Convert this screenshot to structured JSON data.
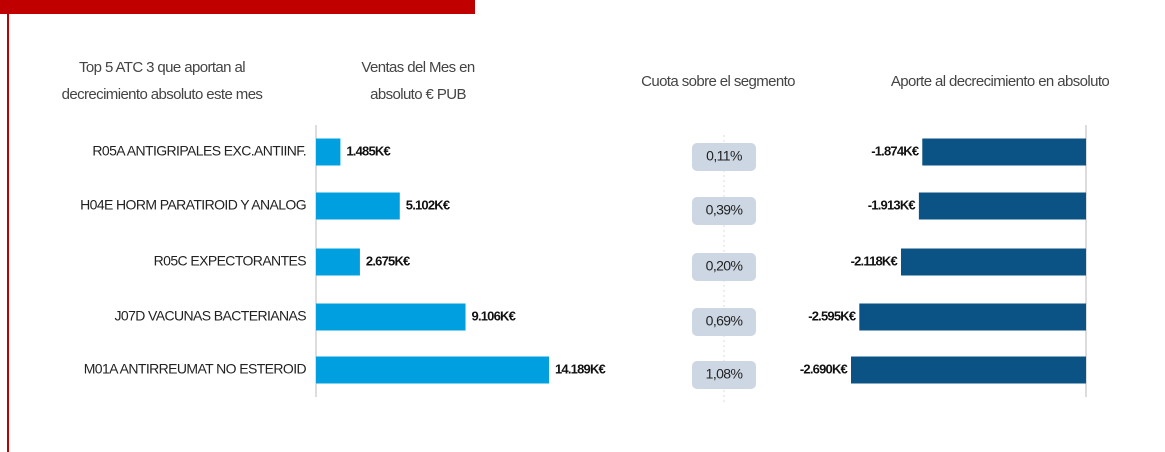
{
  "headers": [
    [
      "Top 5 ATC 3 que aportan al",
      "decrecimiento absoluto este mes"
    ],
    [
      "Ventas del Mes  en",
      "absoluto € PUB"
    ],
    [
      "Cuota sobre el segmento"
    ],
    [
      "Aporte al decrecimiento en absoluto"
    ]
  ],
  "chart_data": [
    {
      "type": "hbar",
      "categories": [
        "R05A ANTIGRIPALES EXC.ANTIINF.",
        "H04E HORM PARATIROID Y ANALOG",
        "R05C EXPECTORANTES",
        "J07D VACUNAS BACTERIANAS",
        "M01A ANTIRREUMAT NO ESTEROID"
      ],
      "values": [
        1485,
        5102,
        2675,
        9106,
        14189
      ],
      "value_labels": [
        "1.485K€",
        "5.102K€",
        "2.675K€",
        "9.106K€",
        "14.189K€"
      ],
      "color": "#00a0e0"
    },
    {
      "type": "hbar",
      "values": [
        -1874,
        -1913,
        -2118,
        -2595,
        -2690
      ],
      "value_labels": [
        "-1.874K€",
        "-1.913K€",
        "-2.118K€",
        "-2.595K€",
        "-2.690K€"
      ],
      "color": "#0b5384"
    }
  ],
  "shares": {
    "values": [
      0.11,
      0.39,
      0.2,
      0.69,
      1.08
    ],
    "value_labels": [
      "0,11%",
      "0,39%",
      "0,20%",
      "0,69%",
      "1,08%"
    ]
  }
}
